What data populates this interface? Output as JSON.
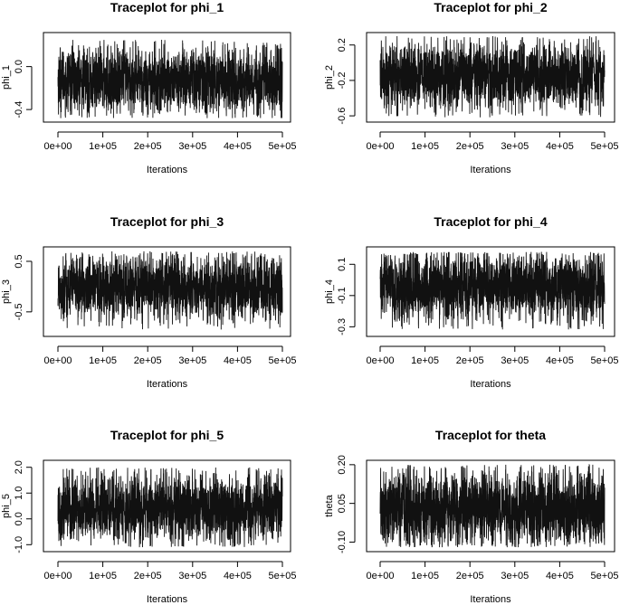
{
  "chart_data": [
    {
      "type": "line",
      "title": "Traceplot for phi_1",
      "xlabel": "Iterations",
      "ylabel": "phi_1",
      "xlim": [
        0,
        500000
      ],
      "ylim": [
        -0.5,
        0.3
      ],
      "x_ticks": [
        0,
        100000,
        200000,
        300000,
        400000,
        500000
      ],
      "x_tick_labels": [
        "0e+00",
        "1e+05",
        "2e+05",
        "3e+05",
        "4e+05",
        "5e+05"
      ],
      "y_ticks": [
        -0.4,
        0.0
      ],
      "y_tick_labels": [
        "-0.4",
        "0.0"
      ],
      "trace_summary": {
        "center": -0.13,
        "typical_low": -0.32,
        "typical_high": 0.05,
        "min": -0.48,
        "max": 0.25
      }
    },
    {
      "type": "line",
      "title": "Traceplot for phi_2",
      "xlabel": "Iterations",
      "ylabel": "phi_2",
      "xlim": [
        0,
        500000
      ],
      "ylim": [
        -0.65,
        0.32
      ],
      "x_ticks": [
        0,
        100000,
        200000,
        300000,
        400000,
        500000
      ],
      "x_tick_labels": [
        "0e+00",
        "1e+05",
        "2e+05",
        "3e+05",
        "4e+05",
        "5e+05"
      ],
      "y_ticks": [
        -0.6,
        -0.2,
        0.2
      ],
      "y_tick_labels": [
        "-0.6",
        "-0.2",
        "0.2"
      ],
      "trace_summary": {
        "center": -0.15,
        "typical_low": -0.38,
        "typical_high": 0.08,
        "min": -0.62,
        "max": 0.3
      }
    },
    {
      "type": "line",
      "title": "Traceplot for phi_3",
      "xlabel": "Iterations",
      "ylabel": "phi_3",
      "xlim": [
        0,
        500000
      ],
      "ylim": [
        -0.95,
        0.75
      ],
      "x_ticks": [
        0,
        100000,
        200000,
        300000,
        400000,
        500000
      ],
      "x_tick_labels": [
        "0e+00",
        "1e+05",
        "2e+05",
        "3e+05",
        "4e+05",
        "5e+05"
      ],
      "y_ticks": [
        -0.5,
        0.5
      ],
      "y_tick_labels": [
        "-0.5",
        "0.5"
      ],
      "trace_summary": {
        "center": -0.02,
        "typical_low": -0.4,
        "typical_high": 0.38,
        "min": -0.85,
        "max": 0.7
      }
    },
    {
      "type": "line",
      "title": "Traceplot for phi_4",
      "xlabel": "Iterations",
      "ylabel": "phi_4",
      "xlim": [
        0,
        500000
      ],
      "ylim": [
        -0.35,
        0.2
      ],
      "x_ticks": [
        0,
        100000,
        200000,
        300000,
        400000,
        500000
      ],
      "x_tick_labels": [
        "0e+00",
        "1e+05",
        "2e+05",
        "3e+05",
        "4e+05",
        "5e+05"
      ],
      "y_ticks": [
        -0.3,
        -0.1,
        0.1
      ],
      "y_tick_labels": [
        "-0.3",
        "-0.1",
        "0.1"
      ],
      "trace_summary": {
        "center": -0.05,
        "typical_low": -0.19,
        "typical_high": 0.08,
        "min": -0.32,
        "max": 0.18
      }
    },
    {
      "type": "line",
      "title": "Traceplot for phi_5",
      "xlabel": "Iterations",
      "ylabel": "phi_5",
      "xlim": [
        0,
        500000
      ],
      "ylim": [
        -1.2,
        2.2
      ],
      "x_ticks": [
        0,
        100000,
        200000,
        300000,
        400000,
        500000
      ],
      "x_tick_labels": [
        "0e+00",
        "1e+05",
        "2e+05",
        "3e+05",
        "4e+05",
        "5e+05"
      ],
      "y_ticks": [
        -1.0,
        0.0,
        1.0,
        2.0
      ],
      "y_tick_labels": [
        "-1.0",
        "0.0",
        "1.0",
        "2.0"
      ],
      "trace_summary": {
        "center": 0.4,
        "typical_low": -0.4,
        "typical_high": 1.2,
        "min": -1.1,
        "max": 2.0
      }
    },
    {
      "type": "line",
      "title": "Traceplot for theta",
      "xlabel": "Iterations",
      "ylabel": "theta",
      "xlim": [
        0,
        500000
      ],
      "ylim": [
        -0.13,
        0.21
      ],
      "x_ticks": [
        0,
        100000,
        200000,
        300000,
        400000,
        500000
      ],
      "x_tick_labels": [
        "0e+00",
        "1e+05",
        "2e+05",
        "3e+05",
        "4e+05",
        "5e+05"
      ],
      "y_ticks": [
        -0.1,
        0.05,
        0.2
      ],
      "y_tick_labels": [
        "-0.10",
        "0.05",
        "0.20"
      ],
      "trace_summary": {
        "center": 0.03,
        "typical_low": -0.06,
        "typical_high": 0.12,
        "min": -0.12,
        "max": 0.2
      }
    }
  ]
}
